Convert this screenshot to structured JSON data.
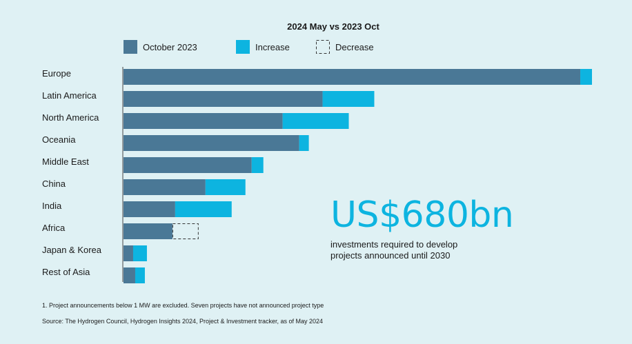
{
  "chart_data": {
    "type": "bar",
    "orientation": "horizontal",
    "stacked": true,
    "title": "2024 May vs 2023 Oct",
    "legend": [
      {
        "name": "October 2023",
        "color": "#4a7896",
        "style": "solid"
      },
      {
        "name": "Increase",
        "color": "#0db4e0",
        "style": "solid"
      },
      {
        "name": "Decrease",
        "color": "#333333",
        "style": "dashed"
      }
    ],
    "legend_position": "top",
    "categories": [
      "Europe",
      "Latin America",
      "North America",
      "Oceania",
      "Middle East",
      "China",
      "India",
      "Africa",
      "Japan & Korea",
      "Rest of Asia"
    ],
    "series": [
      {
        "name": "October 2023",
        "values": [
          663,
          289,
          231,
          255,
          186,
          119,
          75,
          71,
          14,
          17
        ]
      },
      {
        "name": "Increase",
        "values": [
          17,
          75,
          96,
          14,
          17,
          58,
          82,
          0,
          20,
          14
        ]
      },
      {
        "name": "Decrease",
        "values": [
          0,
          0,
          0,
          0,
          0,
          0,
          0,
          38,
          0,
          0
        ]
      }
    ],
    "xlim": [
      0,
      680
    ],
    "grid": false,
    "colors": {
      "october": "#4a7896",
      "increase": "#0db4e0",
      "decrease_border": "#333333",
      "axis": "#444444"
    }
  },
  "callout": {
    "headline": "US$680bn",
    "line1": "investments required to develop",
    "line2": "projects announced until 2030"
  },
  "footnotes": {
    "note1": "1. Project announcements below 1 MW are excluded. Seven projects have not announced project type",
    "note2": "Source: The Hydrogen Council, Hydrogen Insights 2024, Project & Investment tracker, as of May 2024"
  }
}
